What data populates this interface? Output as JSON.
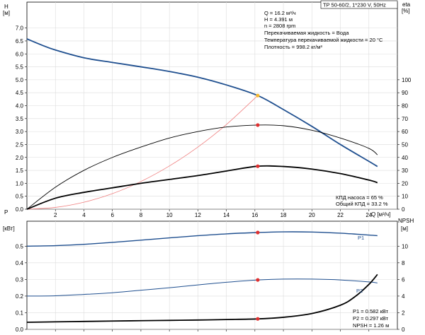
{
  "header": {
    "title": "TP 50-60/2, 1*230 V, 50Hz"
  },
  "top_info": [
    "Q = 16.2 м³/ч",
    "H = 4.391 м",
    "n = 2808 rpm",
    "Перекачиваемая жидкость = Вода",
    "Температура перекачиваемой жидкости = 20 °C",
    "Плотность = 998.2 кг/м³"
  ],
  "eff_info": [
    "КПД насоса = 65 %",
    "Общий КПД = 33.2 %"
  ],
  "bottom_info": [
    "P1 = 0.582 кВт",
    "P2 = 0.297 кВт",
    "NPSH = 1.26 м"
  ],
  "labels": {
    "top_left": "H",
    "top_left_unit": "[м]",
    "top_right": "eta",
    "top_right_unit": "[%]",
    "bottom_left": "P",
    "bottom_left_unit": "[кВт]",
    "bottom_right": "NPSH",
    "bottom_right_unit": "[м]",
    "x_axis": "Q [м³/ч]",
    "p1_curve": "P1",
    "p2_curve": "P2"
  },
  "colors": {
    "head": "#1f4f8f",
    "power": "#1f4f8f",
    "efficiency": "#000000",
    "system": "#f08080",
    "duty_point": "#e03030",
    "duty_point_head": "#f5b830"
  },
  "chart_data": [
    {
      "type": "line",
      "xlim": [
        0,
        26
      ],
      "x_ticks": [
        2,
        4,
        6,
        8,
        10,
        12,
        14,
        16,
        18,
        20,
        22,
        24
      ],
      "x_tick_labels": [
        "2",
        "4",
        "6",
        "8",
        "10",
        "12",
        "14",
        "16",
        "18",
        "20",
        "22",
        "24"
      ],
      "ylim": [
        0,
        8
      ],
      "y_ticks": [
        0,
        0.5,
        1.0,
        1.5,
        2.0,
        2.5,
        3.0,
        3.5,
        4.0,
        4.5,
        5.0,
        5.5,
        6.0,
        6.5,
        7.0
      ],
      "y_tick_labels": [
        "0.0",
        "0.5",
        "1.0",
        "1.5",
        "2.0",
        "2.5",
        "3.0",
        "3.5",
        "4.0",
        "4.5",
        "5.0",
        "5.5",
        "6.0",
        "6.5",
        "7.0"
      ],
      "y2lim": [
        0,
        160
      ],
      "y2_ticks": [
        0,
        10,
        20,
        30,
        40,
        50,
        60,
        70,
        80,
        90,
        100
      ],
      "y2_tick_labels": [
        "0",
        "10",
        "20",
        "30",
        "40",
        "50",
        "60",
        "70",
        "80",
        "90",
        "100"
      ],
      "grid": true,
      "series": [
        {
          "key": "head",
          "axis": "left",
          "width": 1.8,
          "x": [
            0,
            1,
            2,
            4,
            6,
            8,
            10,
            12,
            14,
            16.2,
            18,
            20,
            22,
            24,
            24.6
          ],
          "y": [
            6.58,
            6.35,
            6.15,
            5.85,
            5.67,
            5.5,
            5.32,
            5.1,
            4.8,
            4.39,
            3.85,
            3.2,
            2.5,
            1.85,
            1.65
          ]
        },
        {
          "key": "system",
          "axis": "left",
          "width": 0.8,
          "x": [
            0,
            2,
            4,
            6,
            8,
            10,
            12,
            14,
            16.2
          ],
          "y": [
            0,
            0.07,
            0.27,
            0.6,
            1.07,
            1.67,
            2.4,
            3.27,
            4.39
          ]
        },
        {
          "key": "efficiency",
          "axis": "right",
          "width": 0.9,
          "x": [
            0,
            2,
            4,
            6,
            8,
            10,
            12,
            14,
            16.2,
            18,
            20,
            22,
            24,
            24.6
          ],
          "y": [
            0,
            17,
            30,
            40,
            48,
            55,
            60,
            63.5,
            65,
            64.5,
            61,
            55,
            47,
            42
          ]
        },
        {
          "key": "efficiency",
          "axis": "right",
          "width": 1.8,
          "x": [
            0,
            2,
            4,
            6,
            8,
            10,
            12,
            14,
            16.2,
            18,
            20,
            22,
            24,
            24.6
          ],
          "y": [
            0,
            8.5,
            13,
            16.5,
            20,
            23,
            26,
            29.5,
            33.2,
            33,
            31,
            27.5,
            22.5,
            20.5
          ]
        }
      ],
      "duty_points": [
        {
          "x": 16.2,
          "y": 4.391,
          "axis": "left",
          "color_key": "duty_point_head"
        },
        {
          "x": 16.2,
          "y": 65,
          "axis": "right",
          "color_key": "duty_point"
        },
        {
          "x": 16.2,
          "y": 33.2,
          "axis": "right",
          "color_key": "duty_point"
        }
      ]
    },
    {
      "type": "line",
      "xlim": [
        0,
        26
      ],
      "x_ticks": [
        2,
        4,
        6,
        8,
        10,
        12,
        14,
        16,
        18,
        20,
        22,
        24
      ],
      "ylim": [
        0,
        0.65
      ],
      "y_ticks": [
        0,
        0.1,
        0.2,
        0.3,
        0.4,
        0.5
      ],
      "y_tick_labels": [
        "0.0",
        "0.1",
        "0.2",
        "0.3",
        "0.4",
        "0.5"
      ],
      "y2lim": [
        0,
        13
      ],
      "y2_ticks": [
        0,
        2,
        4,
        6,
        8,
        10
      ],
      "y2_tick_labels": [
        "0",
        "2",
        "4",
        "6",
        "8",
        "10"
      ],
      "grid": true,
      "series": [
        {
          "key": "power",
          "axis": "left",
          "width": 1.4,
          "x": [
            0,
            2,
            4,
            6,
            8,
            10,
            12,
            14,
            16.2,
            18,
            20,
            22,
            24,
            24.6
          ],
          "y": [
            0.5,
            0.503,
            0.511,
            0.523,
            0.536,
            0.55,
            0.563,
            0.574,
            0.582,
            0.586,
            0.585,
            0.578,
            0.567,
            0.563
          ]
        },
        {
          "key": "power",
          "axis": "left",
          "width": 1.0,
          "x": [
            0,
            2,
            4,
            6,
            8,
            10,
            12,
            14,
            16.2,
            18,
            20,
            22,
            24,
            24.6
          ],
          "y": [
            0.2,
            0.202,
            0.21,
            0.22,
            0.235,
            0.25,
            0.267,
            0.283,
            0.297,
            0.302,
            0.302,
            0.297,
            0.285,
            0.279
          ]
        },
        {
          "key": "efficiency",
          "axis": "right",
          "width": 1.8,
          "x": [
            0,
            2,
            4,
            6,
            8,
            10,
            12,
            14,
            16.2,
            18,
            20,
            22,
            23,
            24,
            24.6
          ],
          "y": [
            0.85,
            0.9,
            0.95,
            1.0,
            1.04,
            1.08,
            1.12,
            1.18,
            1.26,
            1.45,
            1.9,
            2.9,
            3.9,
            5.4,
            6.6
          ]
        }
      ],
      "duty_points": [
        {
          "x": 16.2,
          "y": 0.582,
          "axis": "left",
          "color_key": "duty_point"
        },
        {
          "x": 16.2,
          "y": 0.297,
          "axis": "left",
          "color_key": "duty_point"
        },
        {
          "x": 16.2,
          "y": 1.26,
          "axis": "right",
          "color_key": "duty_point"
        }
      ]
    }
  ]
}
